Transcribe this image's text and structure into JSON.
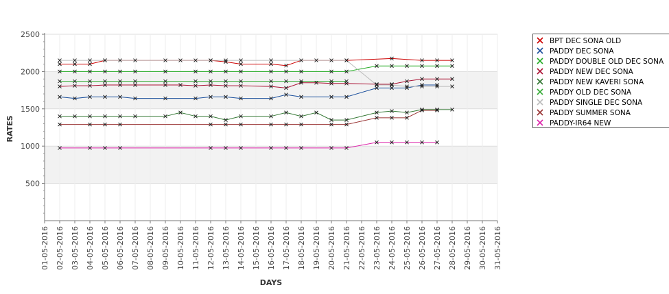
{
  "chart_data": {
    "type": "line",
    "xlabel": "DAYS",
    "ylabel": "RATES",
    "ylim": [
      0,
      2500
    ],
    "yticks": [
      500,
      1000,
      1500,
      2000,
      2500
    ],
    "grid": "alternating horizontal bands",
    "legend_position": "right",
    "categories": [
      "01-05-2016",
      "02-05-2016",
      "03-05-2016",
      "04-05-2016",
      "05-05-2016",
      "06-05-2016",
      "07-05-2016",
      "08-05-2016",
      "09-05-2016",
      "10-05-2016",
      "11-05-2016",
      "12-05-2016",
      "13-05-2016",
      "14-05-2016",
      "15-05-2016",
      "16-05-2016",
      "17-05-2016",
      "18-05-2016",
      "19-05-2016",
      "20-05-2016",
      "21-05-2016",
      "22-05-2016",
      "23-05-2016",
      "24-05-2016",
      "25-05-2016",
      "26-05-2016",
      "27-05-2016",
      "28-05-2016",
      "29-05-2016",
      "30-05-2016",
      "31-05-2016"
    ],
    "series": [
      {
        "name": "BPT DEC SONA OLD",
        "color": "#cc0000",
        "values": [
          null,
          2100,
          2100,
          2100,
          2150,
          null,
          null,
          null,
          null,
          null,
          null,
          2150,
          2130,
          2100,
          null,
          2100,
          2080,
          2150,
          null,
          2150,
          2150,
          null,
          null,
          2175,
          null,
          2150,
          2150,
          2150,
          null,
          null,
          null
        ]
      },
      {
        "name": "PADDY DEC SONA",
        "color": "#1a4f9c",
        "values": [
          null,
          1660,
          1640,
          1660,
          1660,
          1660,
          1640,
          null,
          1640,
          null,
          1640,
          1660,
          1660,
          1640,
          null,
          1640,
          1690,
          1660,
          null,
          1660,
          1660,
          null,
          1780,
          1780,
          1780,
          1820,
          1820,
          null,
          null,
          null,
          null
        ]
      },
      {
        "name": "PADDY DOUBLE OLD DEC SONA",
        "color": "#22aa22",
        "values": [
          null,
          2000,
          2000,
          2000,
          2000,
          2000,
          2000,
          null,
          2000,
          null,
          2000,
          2000,
          2000,
          2000,
          null,
          2000,
          2000,
          2000,
          null,
          2000,
          2000,
          null,
          2075,
          2075,
          2075,
          2075,
          2075,
          2075,
          null,
          null,
          null
        ]
      },
      {
        "name": "PADDY NEW DEC SONA",
        "color": "#aa1133",
        "values": [
          null,
          1800,
          1810,
          1810,
          1820,
          1820,
          1820,
          null,
          1820,
          1820,
          1810,
          1820,
          1810,
          1810,
          null,
          1800,
          1780,
          1850,
          1850,
          1840,
          1840,
          null,
          1830,
          1830,
          1870,
          1900,
          1900,
          1900,
          null,
          null,
          null
        ]
      },
      {
        "name": "PADDY NEW KAVERI SONA",
        "color": "#337733",
        "values": [
          null,
          1400,
          1400,
          1400,
          1400,
          1400,
          1400,
          null,
          1400,
          1450,
          1400,
          1400,
          1350,
          1400,
          null,
          1400,
          1450,
          1400,
          1450,
          1350,
          1350,
          null,
          1450,
          1470,
          1450,
          1490,
          1490,
          1490,
          null,
          null,
          null
        ]
      },
      {
        "name": "PADDY OLD DEC SONA",
        "color": "#33aa33",
        "values": [
          null,
          1870,
          1870,
          1870,
          1870,
          1870,
          1870,
          null,
          1870,
          null,
          1870,
          1870,
          1870,
          1870,
          null,
          1870,
          1870,
          1870,
          null,
          1870,
          1870,
          null,
          null,
          null,
          null,
          null,
          null,
          null,
          null,
          null,
          null
        ]
      },
      {
        "name": "PADDY SINGLE DEC SONA",
        "color": "#bbbbbb",
        "values": [
          null,
          2150,
          2150,
          2150,
          2150,
          2150,
          2150,
          null,
          2150,
          2150,
          2150,
          2150,
          2150,
          2150,
          null,
          2150,
          null,
          null,
          2150,
          null,
          2150,
          null,
          1820,
          1820,
          1800,
          1800,
          1800,
          1800,
          null,
          null,
          null
        ]
      },
      {
        "name": "PADDY SUMMER SONA",
        "color": "#993333",
        "values": [
          null,
          1290,
          null,
          1290,
          1290,
          1290,
          null,
          null,
          null,
          null,
          null,
          1290,
          1290,
          1290,
          null,
          1290,
          1290,
          1290,
          null,
          1290,
          1290,
          null,
          1380,
          1380,
          1380,
          1480,
          1480,
          null,
          null,
          null,
          null
        ]
      },
      {
        "name": "PADDY-IR64 NEW",
        "color": "#dd22aa",
        "values": [
          null,
          975,
          null,
          975,
          975,
          975,
          null,
          null,
          null,
          null,
          null,
          975,
          975,
          975,
          null,
          975,
          975,
          975,
          null,
          975,
          975,
          null,
          1050,
          1050,
          1050,
          1050,
          1050,
          null,
          null,
          null,
          null
        ]
      }
    ]
  }
}
